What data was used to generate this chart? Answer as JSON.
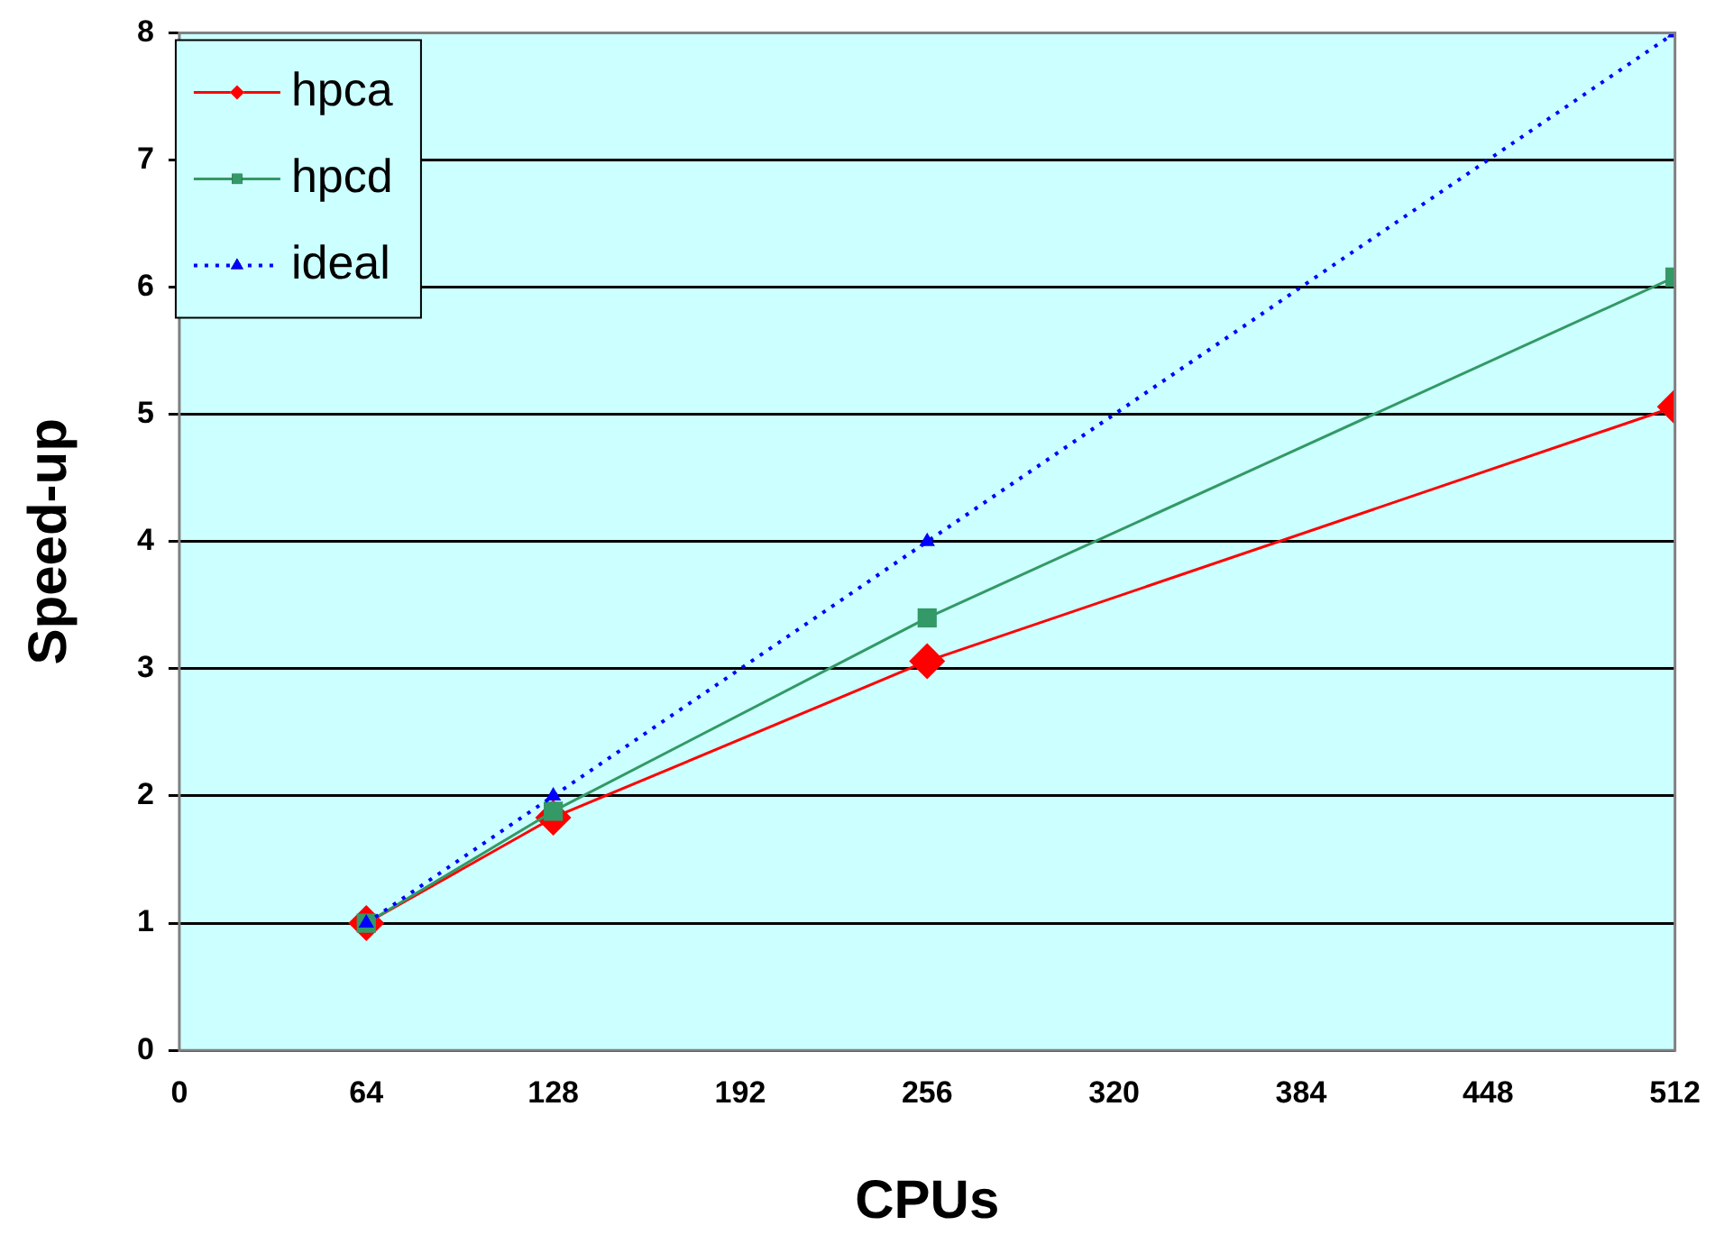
{
  "chart_data": {
    "type": "line",
    "xlabel": "CPUs",
    "ylabel": "Speed-up",
    "x": [
      64,
      128,
      256,
      512
    ],
    "series": [
      {
        "name": "hpca",
        "color": "#ff0000",
        "values": [
          1,
          1.83,
          3.06,
          5.06
        ],
        "marker": "diamond",
        "line_style": "solid"
      },
      {
        "name": "hpcd",
        "color": "#339966",
        "values": [
          1,
          1.88,
          3.4,
          6.08
        ],
        "marker": "square",
        "line_style": "solid"
      },
      {
        "name": "ideal",
        "color": "#0000ff",
        "values": [
          1,
          2,
          4,
          8
        ],
        "marker": "triangle",
        "line_style": "dotted"
      }
    ],
    "xlim": [
      0,
      512
    ],
    "xticks": [
      0,
      64,
      128,
      192,
      256,
      320,
      384,
      448,
      512
    ],
    "ylim": [
      0,
      8
    ],
    "yticks": [
      0,
      1,
      2,
      3,
      4,
      5,
      6,
      7,
      8
    ],
    "grid": "y",
    "legend": "top left"
  }
}
